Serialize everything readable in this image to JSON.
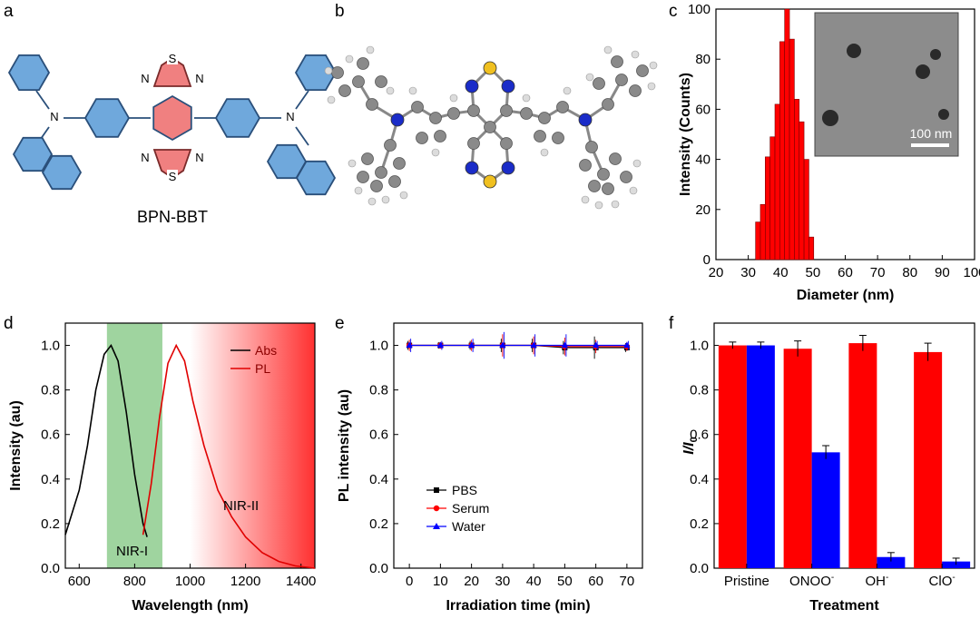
{
  "colors": {
    "benzene": "#6fa8dc",
    "btd_core": "#f08080",
    "bar_red": "#ff0000",
    "bar_blue": "#0000ff",
    "abs_line": "#000000",
    "pl_line": "#e00000",
    "nir1_band": "#9fd49f",
    "nir2_band": "#ff3030",
    "pbs": "#000000",
    "serum": "#ff0000",
    "water": "#0000ff"
  },
  "panels": {
    "a": {
      "label": "a",
      "molecule_name": "BPN-BBT",
      "atoms": {
        "N": "N",
        "S": "S"
      }
    },
    "b": {
      "label": "b"
    },
    "c": {
      "label": "c"
    },
    "d": {
      "label": "d"
    },
    "e": {
      "label": "e"
    },
    "f": {
      "label": "f"
    }
  },
  "chart_data": [
    {
      "id": "c",
      "type": "bar",
      "title": "",
      "xlabel": "Diameter (nm)",
      "ylabel": "Intensity (Counts)",
      "xlim": [
        20,
        100
      ],
      "ylim": [
        0,
        100
      ],
      "xticks": [
        20,
        30,
        40,
        50,
        60,
        70,
        80,
        90,
        100
      ],
      "yticks": [
        0,
        20,
        40,
        60,
        80,
        100
      ],
      "bin_width": 1.5,
      "x": [
        33,
        34.5,
        36,
        37.5,
        39,
        40.5,
        42,
        43.5,
        45,
        46.5,
        48,
        49.5
      ],
      "values": [
        15,
        22,
        41,
        49,
        62,
        87,
        100,
        88,
        64,
        55,
        40,
        9
      ],
      "inset": {
        "scale_bar_label": "100 nm"
      }
    },
    {
      "id": "d",
      "type": "line",
      "xlabel": "Wavelength (nm)",
      "ylabel": "Intensity (au)",
      "xlim": [
        550,
        1450
      ],
      "ylim": [
        0,
        1.1
      ],
      "xticks": [
        600,
        800,
        1000,
        1200,
        1400
      ],
      "yticks": [
        0.0,
        0.2,
        0.4,
        0.6,
        0.8,
        1.0
      ],
      "series": [
        {
          "name": "Abs",
          "x": [
            550,
            600,
            630,
            660,
            690,
            715,
            740,
            770,
            800,
            830,
            845
          ],
          "y": [
            0.15,
            0.35,
            0.55,
            0.8,
            0.96,
            1.0,
            0.93,
            0.7,
            0.42,
            0.2,
            0.14
          ]
        },
        {
          "name": "PL",
          "x": [
            830,
            860,
            890,
            920,
            950,
            980,
            1010,
            1050,
            1100,
            1150,
            1200,
            1260,
            1320,
            1380,
            1450
          ],
          "y": [
            0.15,
            0.38,
            0.68,
            0.92,
            1.0,
            0.93,
            0.75,
            0.55,
            0.35,
            0.23,
            0.14,
            0.07,
            0.03,
            0.01,
            0.0
          ]
        }
      ],
      "bands": [
        {
          "label": "NIR-I",
          "range": [
            700,
            900
          ]
        },
        {
          "label": "NIR-II",
          "range": [
            1000,
            1450
          ]
        }
      ],
      "legend": [
        "Abs",
        "PL"
      ]
    },
    {
      "id": "e",
      "type": "line",
      "xlabel": "Irradiation time (min)",
      "ylabel": "PL intensity (au)",
      "xlim": [
        -5,
        75
      ],
      "ylim": [
        0,
        1.1
      ],
      "xticks": [
        0,
        10,
        20,
        30,
        40,
        50,
        60,
        70
      ],
      "yticks": [
        0.0,
        0.2,
        0.4,
        0.6,
        0.8,
        1.0
      ],
      "x": [
        0,
        10,
        20,
        30,
        40,
        50,
        60,
        70
      ],
      "series": [
        {
          "name": "PBS",
          "values": [
            1.0,
            1.0,
            1.0,
            1.0,
            1.0,
            0.99,
            0.99,
            0.99
          ],
          "err": [
            0.02,
            0.015,
            0.02,
            0.03,
            0.03,
            0.03,
            0.05,
            0.02
          ]
        },
        {
          "name": "Serum",
          "values": [
            1.0,
            1.0,
            1.0,
            1.0,
            1.0,
            0.995,
            0.995,
            0.995
          ],
          "err": [
            0.025,
            0.015,
            0.025,
            0.05,
            0.04,
            0.04,
            0.03,
            0.02
          ]
        },
        {
          "name": "Water",
          "values": [
            1.0,
            1.0,
            1.0,
            1.0,
            1.0,
            1.0,
            1.0,
            1.0
          ],
          "err": [
            0.03,
            0.02,
            0.03,
            0.06,
            0.05,
            0.05,
            0.02,
            0.02
          ]
        }
      ],
      "legend": [
        "PBS",
        "Serum",
        "Water"
      ]
    },
    {
      "id": "f",
      "type": "bar",
      "xlabel": "Treatment",
      "ylabel": "I/I0",
      "ylabel_parts": {
        "i": "I",
        "slash": "/",
        "i2": "I",
        "sub": "0"
      },
      "ylim": [
        0,
        1.1
      ],
      "yticks": [
        0.0,
        0.2,
        0.4,
        0.6,
        0.8,
        1.0
      ],
      "categories": [
        {
          "base": "Pristine",
          "sup": ""
        },
        {
          "base": "ONOO",
          "sup": "-"
        },
        {
          "base": "OH",
          "sup": "-"
        },
        {
          "base": "ClO",
          "sup": "-"
        }
      ],
      "series": [
        {
          "name": "red",
          "values": [
            1.0,
            0.985,
            1.01,
            0.97
          ],
          "err": [
            0.015,
            0.035,
            0.035,
            0.04
          ]
        },
        {
          "name": "blue",
          "values": [
            1.0,
            0.52,
            0.05,
            0.03
          ],
          "err": [
            0.015,
            0.03,
            0.02,
            0.015
          ]
        }
      ]
    }
  ]
}
